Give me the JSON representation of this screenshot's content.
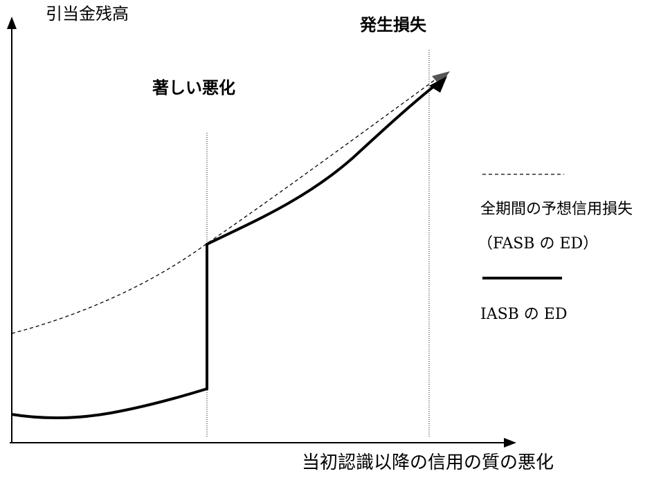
{
  "axes": {
    "y_label": "引当金残高",
    "x_label": "当初認識以降の信用の質の悪化"
  },
  "annotations": {
    "deterioration": "著しい悪化",
    "incurred_loss": "発生損失"
  },
  "legend": {
    "fasb_line1": "全期間の予想信用損失",
    "fasb_line2": "（FASB の ED）",
    "iasb": "IASB の ED"
  }
}
